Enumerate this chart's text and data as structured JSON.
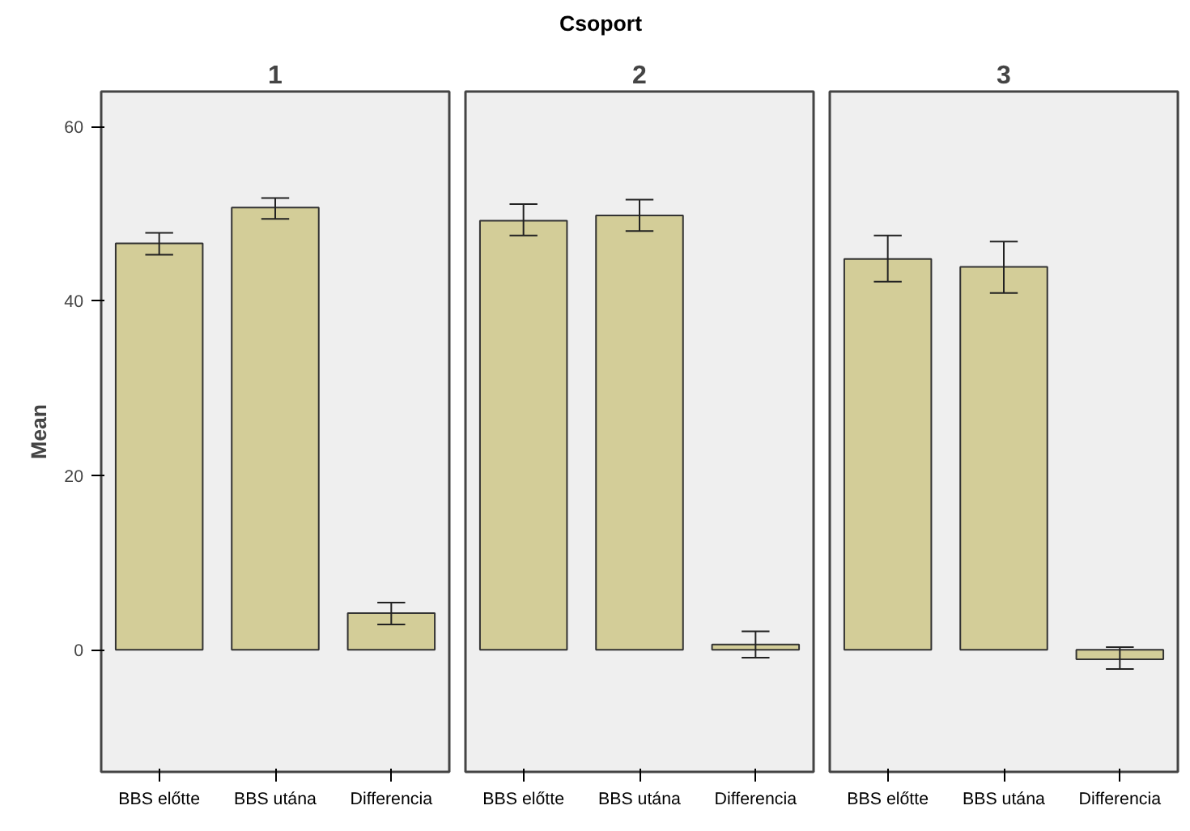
{
  "chart_data": [
    {
      "type": "bar",
      "title": "1",
      "annotations": [
        "Csoport"
      ],
      "ylabel": "Mean",
      "categories": [
        "BBS előtte",
        "BBS utána",
        "Differencia"
      ],
      "values": [
        46.6,
        50.7,
        4.2
      ],
      "errors": [
        [
          45.3,
          47.8
        ],
        [
          49.4,
          51.8
        ],
        [
          2.9,
          5.4
        ]
      ],
      "color": "#d3cd98",
      "ylim": [
        -14,
        64
      ],
      "yticks": [
        0,
        20,
        40,
        60
      ],
      "grid": false
    },
    {
      "type": "bar",
      "title": "2",
      "categories": [
        "BBS előtte",
        "BBS utána",
        "Differencia"
      ],
      "values": [
        49.2,
        49.8,
        0.6
      ],
      "errors": [
        [
          47.5,
          51.1
        ],
        [
          48.0,
          51.6
        ],
        [
          -0.9,
          2.1
        ]
      ],
      "color": "#d3cd98",
      "ylim": [
        -14,
        64
      ],
      "yticks": [
        0,
        20,
        40,
        60
      ],
      "grid": false,
      "tick_labels": "x"
    },
    {
      "type": "bar",
      "title": "3",
      "categories": [
        "BBS előtte",
        "BBS utána",
        "Differencia"
      ],
      "values": [
        44.8,
        43.9,
        -1.1
      ],
      "errors": [
        [
          42.2,
          47.5
        ],
        [
          40.9,
          46.8
        ],
        [
          -2.2,
          0.3
        ]
      ],
      "color": "#d3cd98",
      "ylim": [
        -14,
        64
      ],
      "yticks": [
        0,
        20,
        40,
        60
      ],
      "grid": false,
      "tick_labels": "x"
    }
  ]
}
